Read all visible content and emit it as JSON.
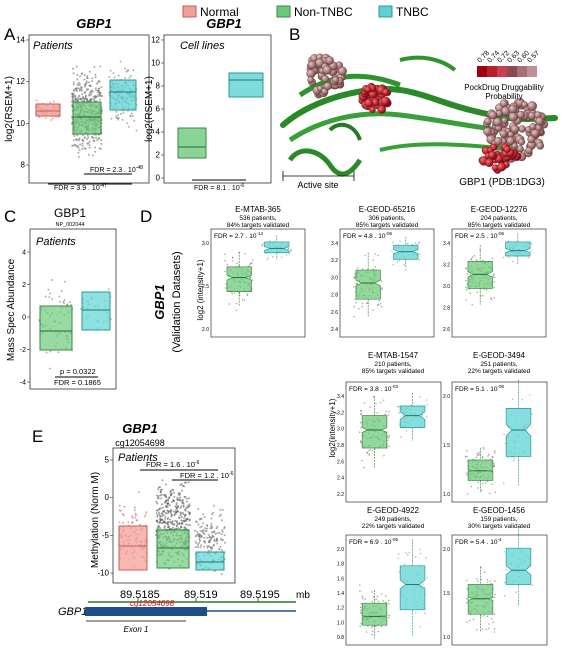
{
  "legend": {
    "items": [
      {
        "label": "Normal",
        "color": "#f4a09a"
      },
      {
        "label": "Non-TNBC",
        "color": "#6dc97a"
      },
      {
        "label": "TNBC",
        "color": "#5fd3d3"
      }
    ]
  },
  "panels": {
    "A": {
      "letter": "A",
      "gene": "GBP1",
      "patients_label": "Patients",
      "ylabel": "log2(RSEM+1)",
      "yticks": [
        "8",
        "10",
        "12",
        "14"
      ],
      "fdr1": "FDR = 2.3 . 10",
      "fdr1_exp": "-48",
      "fdr2": "FDR = 3.9 . 10",
      "fdr2_exp": "-47",
      "cell_gene": "GBP1",
      "cell_label": "Cell lines",
      "cell_yticks": [
        "0",
        "2",
        "4",
        "6",
        "8",
        "10",
        "12"
      ],
      "cell_fdr": "FDR = 8.1 . 10",
      "cell_fdr_exp": "-6"
    },
    "B": {
      "letter": "B",
      "scale_values": [
        "0.78",
        "0.74",
        "0.72",
        "0.63",
        "0.60",
        "0.57"
      ],
      "scale_colors": [
        "#a00010",
        "#b8202c",
        "#c84050",
        "#8a4a52",
        "#a77078",
        "#c09098"
      ],
      "scale_title_1": "PockDrug Druggability",
      "scale_title_2": "Probability",
      "active_site": "Active site",
      "caption": "GBP1 (PDB:1DG3)"
    },
    "C": {
      "letter": "C",
      "gene": "GBP1",
      "np": "NP_002044",
      "patients_label": "Patients",
      "ylabel": "Mass Spec Abundance",
      "yticks": [
        "-4",
        "-2",
        "0",
        "2",
        "4"
      ],
      "p": "p = 0.0322",
      "fdr": "FDR = 0.1865"
    },
    "D": {
      "letter": "D",
      "ylabel_1": "GBP1",
      "ylabel_2": "(Validation Datasets)",
      "axis_label": "log2 (intensity+1)",
      "axis_label2": "log2(intensity+1)",
      "datasets": [
        {
          "name": "E-MTAB-365",
          "l2": "536 patients,",
          "l3": "84% targets validated",
          "fdr": "FDR = 2.7 . 10",
          "exp": "-14",
          "yticks": [
            "2.0",
            "2.5",
            "3.0"
          ]
        },
        {
          "name": "E-GEOD-65216",
          "l2": "306 patients,",
          "l3": "85% targets validated",
          "fdr": "FDR = 4.8 . 10",
          "exp": "-06",
          "yticks": [
            "2.4",
            "2.6",
            "2.8",
            "3.0",
            "3.2",
            "3.4"
          ]
        },
        {
          "name": "E-GEOD-12276",
          "l2": "204 patients,",
          "l3": "85% targets validated",
          "fdr": "FDR = 2.5 . 10",
          "exp": "-06",
          "yticks": [
            "2.6",
            "2.8",
            "3.0",
            "3.2",
            "3.4"
          ]
        },
        {
          "name": "E-MTAB-1547",
          "l2": "210 patients,",
          "l3": "85% targets validated",
          "fdr": "FDR = 3.8 . 10",
          "exp": "-03",
          "yticks": [
            "2.2",
            "2.4",
            "2.6",
            "2.8",
            "3.0",
            "3.2",
            "3.4"
          ]
        },
        {
          "name": "E-GEOD-3494",
          "l2": "251 patients,",
          "l3": "22% targets validated",
          "fdr": "FDR = 5.1 . 10",
          "exp": "-06",
          "yticks": [
            "1.0",
            "1.5",
            "2.0"
          ]
        },
        {
          "name": "E-GEOD-4922",
          "l2": "249 patients,",
          "l3": "22% targets validated",
          "fdr": "FDR = 6.9 . 10",
          "exp": "-05",
          "yticks": [
            "0.8",
            "1.0",
            "1.2",
            "1.4",
            "1.6",
            "1.8",
            "2.0"
          ]
        },
        {
          "name": "E-GEOD-1456",
          "l2": "159 patients,",
          "l3": "30% targets validated",
          "fdr": "FDR = 5.4 . 10",
          "exp": "-4",
          "yticks": [
            "1.0",
            "1.5",
            "2.0"
          ]
        }
      ]
    },
    "E": {
      "letter": "E",
      "gene": "GBP1",
      "probe": "cg12054698",
      "patients_label": "Patients",
      "ylabel": "Methylation (Norm M)",
      "yticks": [
        "-10",
        "-5",
        "0",
        "5"
      ],
      "fdr1": "FDR = 1.6 . 10",
      "fdr1_exp": "-6",
      "fdr2": "FDR = 1.2 . 10",
      "fdr2_exp": "-6",
      "coords": [
        "89.5185",
        "89.519",
        "89.5195"
      ],
      "unit": "mb",
      "track_gene": "GBP1",
      "probe_red": "cg12054698",
      "exon": "Exon 1"
    }
  }
}
